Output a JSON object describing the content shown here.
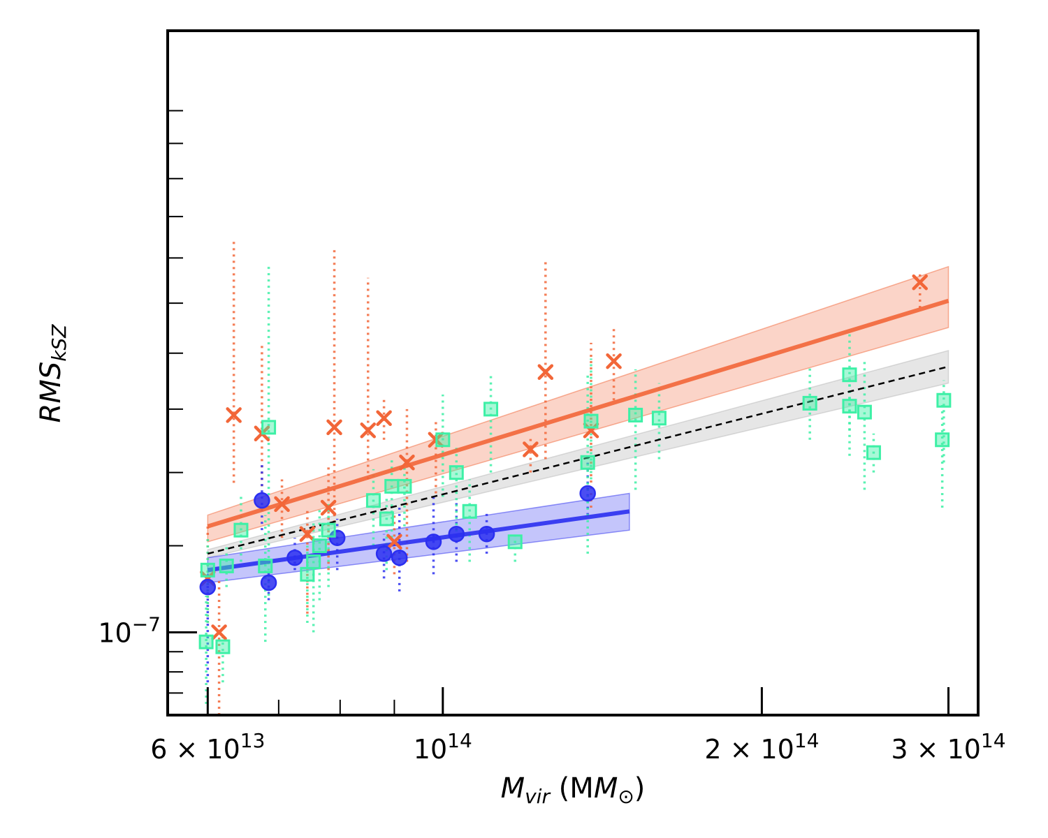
{
  "chart_data": {
    "type": "scatter",
    "xscale": "log",
    "yscale": "log",
    "xlim": [
      55000000000000.0,
      320000000000000.0
    ],
    "ylim": [
      8.4e-08,
      3.55e-07
    ],
    "xlabel": {
      "main": "M",
      "sub": "vir",
      "rest": " (M",
      "sub2": "⊙",
      "close": ")"
    },
    "ylabel": {
      "main": "RMS",
      "sub": "kSZ"
    },
    "x_tick_labels": [
      {
        "value": 60000000000000.0,
        "mantissa": "6 × 10",
        "exp": "13"
      },
      {
        "value": 100000000000000.0,
        "mantissa": "10",
        "exp": "14"
      },
      {
        "value": 200000000000000.0,
        "mantissa": "2 × 10",
        "exp": "14"
      },
      {
        "value": 300000000000000.0,
        "mantissa": "3 × 10",
        "exp": "14"
      }
    ],
    "y_tick_labels": [
      {
        "value": 1e-07,
        "mantissa": "10",
        "exp": "−7"
      }
    ],
    "x_minor_ticks": [
      70000000000000.0,
      80000000000000.0,
      90000000000000.0
    ],
    "y_minor_ticks": [
      8.8e-08,
      9.2e-08,
      9.6e-08,
      1.2e-07,
      1.4e-07,
      1.6e-07,
      1.8e-07,
      2e-07,
      2.2e-07,
      2.4e-07,
      2.6e-07,
      2.8e-07,
      3e-07
    ],
    "colors": {
      "orange": "#f26638",
      "blue": "#2b2ff0",
      "green": "#3df0a6",
      "gray": "#b8b8b8"
    },
    "series": [
      {
        "name": "orange-crosses",
        "marker": "x",
        "color": "#f26638",
        "points": [
          {
            "x": 60000000000000.0,
            "y": 1.12e-07,
            "lo": 1.02e-07,
            "hi": 1.25e-07
          },
          {
            "x": 61500000000000.0,
            "y": 1e-07,
            "lo": 8.4e-08,
            "hi": 1.12e-07
          },
          {
            "x": 63500000000000.0,
            "y": 1.58e-07,
            "lo": 1.37e-07,
            "hi": 2.28e-07
          },
          {
            "x": 67500000000000.0,
            "y": 1.52e-07,
            "lo": 1.36e-07,
            "hi": 1.84e-07
          },
          {
            "x": 70500000000000.0,
            "y": 1.31e-07,
            "lo": 1.22e-07,
            "hi": 1.38e-07
          },
          {
            "x": 74500000000000.0,
            "y": 1.23e-07,
            "lo": 1.04e-07,
            "hi": 1.3e-07
          },
          {
            "x": 78000000000000.0,
            "y": 1.3e-07,
            "lo": 1.14e-07,
            "hi": 1.42e-07
          },
          {
            "x": 79000000000000.0,
            "y": 1.54e-07,
            "lo": 1.26e-07,
            "hi": 2.24e-07
          },
          {
            "x": 85000000000000.0,
            "y": 1.53e-07,
            "lo": 1.38e-07,
            "hi": 2.11e-07
          },
          {
            "x": 88000000000000.0,
            "y": 1.57e-07,
            "lo": 1.5e-07,
            "hi": 1.64e-07
          },
          {
            "x": 90000000000000.0,
            "y": 1.21e-07,
            "lo": 1.13e-07,
            "hi": 1.29e-07
          },
          {
            "x": 92500000000000.0,
            "y": 1.43e-07,
            "lo": 1.16e-07,
            "hi": 1.6e-07
          },
          {
            "x": 98500000000000.0,
            "y": 1.5e-07,
            "lo": 1.34e-07,
            "hi": 1.57e-07
          },
          {
            "x": 121000000000000.0,
            "y": 1.47e-07,
            "lo": 1.4e-07,
            "hi": 1.51e-07
          },
          {
            "x": 125000000000000.0,
            "y": 1.73e-07,
            "lo": 1.44e-07,
            "hi": 2.19e-07
          },
          {
            "x": 138000000000000.0,
            "y": 1.53e-07,
            "lo": 1.3e-07,
            "hi": 1.84e-07
          },
          {
            "x": 145000000000000.0,
            "y": 1.77e-07,
            "lo": 1.63e-07,
            "hi": 1.9e-07
          },
          {
            "x": 282000000000000.0,
            "y": 2.09e-07,
            "lo": 1.98e-07,
            "hi": 2.13e-07
          }
        ]
      },
      {
        "name": "blue-circles",
        "marker": "o",
        "color": "#2b2ff0",
        "points": [
          {
            "x": 60000000000000.0,
            "y": 1.1e-07,
            "lo": 9e-08,
            "hi": 1.13e-07
          },
          {
            "x": 67500000000000.0,
            "y": 1.32e-07,
            "lo": 1.24e-07,
            "hi": 1.43e-07
          },
          {
            "x": 68500000000000.0,
            "y": 1.11e-07,
            "lo": 1.07e-07,
            "hi": 1.14e-07
          },
          {
            "x": 72500000000000.0,
            "y": 1.17e-07,
            "lo": 1.14e-07,
            "hi": 1.22e-07
          },
          {
            "x": 79500000000000.0,
            "y": 1.22e-07,
            "lo": 1.14e-07,
            "hi": 1.27e-07
          },
          {
            "x": 88000000000000.0,
            "y": 1.18e-07,
            "lo": 1.12e-07,
            "hi": 1.23e-07
          },
          {
            "x": 91000000000000.0,
            "y": 1.17e-07,
            "lo": 1.09e-07,
            "hi": 1.3e-07
          },
          {
            "x": 98000000000000.0,
            "y": 1.21e-07,
            "lo": 1.13e-07,
            "hi": 1.34e-07
          },
          {
            "x": 103000000000000.0,
            "y": 1.23e-07,
            "lo": 1.16e-07,
            "hi": 1.32e-07
          },
          {
            "x": 110000000000000.0,
            "y": 1.23e-07,
            "lo": 1.18e-07,
            "hi": 1.29e-07
          },
          {
            "x": 137000000000000.0,
            "y": 1.34e-07,
            "lo": 1.28e-07,
            "hi": 1.43e-07
          }
        ]
      },
      {
        "name": "green-squares",
        "marker": "s",
        "color": "#3df0a6",
        "points": [
          {
            "x": 59800000000000.0,
            "y": 9.8e-08,
            "lo": 8.6e-08,
            "hi": 1.08e-07
          },
          {
            "x": 60000000000000.0,
            "y": 1.14e-07,
            "lo": 1.02e-07,
            "hi": 1.22e-07
          },
          {
            "x": 62000000000000.0,
            "y": 9.7e-08,
            "lo": 9e-08,
            "hi": 1e-07
          },
          {
            "x": 62500000000000.0,
            "y": 1.15e-07,
            "lo": 1.1e-07,
            "hi": 1.2e-07
          },
          {
            "x": 64500000000000.0,
            "y": 1.24e-07,
            "lo": 1.16e-07,
            "hi": 1.33e-07
          },
          {
            "x": 68000000000000.0,
            "y": 1.15e-07,
            "lo": 9.8e-08,
            "hi": 1.28e-07
          },
          {
            "x": 68500000000000.0,
            "y": 1.54e-07,
            "lo": 1.08e-07,
            "hi": 2.16e-07
          },
          {
            "x": 74500000000000.0,
            "y": 1.13e-07,
            "lo": 1.02e-07,
            "hi": 1.2e-07
          },
          {
            "x": 75500000000000.0,
            "y": 1.16e-07,
            "lo": 1e-07,
            "hi": 1.26e-07
          },
          {
            "x": 76500000000000.0,
            "y": 1.2e-07,
            "lo": 1.07e-07,
            "hi": 1.3e-07
          },
          {
            "x": 78000000000000.0,
            "y": 1.24e-07,
            "lo": 1.1e-07,
            "hi": 1.31e-07
          },
          {
            "x": 86000000000000.0,
            "y": 1.32e-07,
            "lo": 1.2e-07,
            "hi": 1.41e-07
          },
          {
            "x": 88500000000000.0,
            "y": 1.27e-07,
            "lo": 1.14e-07,
            "hi": 1.33e-07
          },
          {
            "x": 89500000000000.0,
            "y": 1.36e-07,
            "lo": 1.22e-07,
            "hi": 1.44e-07
          },
          {
            "x": 92000000000000.0,
            "y": 1.36e-07,
            "lo": 1.25e-07,
            "hi": 1.42e-07
          },
          {
            "x": 100000000000000.0,
            "y": 1.5e-07,
            "lo": 1.33e-07,
            "hi": 1.65e-07
          },
          {
            "x": 103000000000000.0,
            "y": 1.4e-07,
            "lo": 1.22e-07,
            "hi": 1.48e-07
          },
          {
            "x": 106000000000000.0,
            "y": 1.29e-07,
            "lo": 1.16e-07,
            "hi": 1.38e-07
          },
          {
            "x": 111000000000000.0,
            "y": 1.6e-07,
            "lo": 1.4e-07,
            "hi": 1.72e-07
          },
          {
            "x": 117000000000000.0,
            "y": 1.21e-07,
            "lo": 1.16e-07,
            "hi": 1.23e-07
          },
          {
            "x": 137000000000000.0,
            "y": 1.43e-07,
            "lo": 1.18e-07,
            "hi": 1.72e-07
          },
          {
            "x": 138000000000000.0,
            "y": 1.56e-07,
            "lo": 1.38e-07,
            "hi": 1.78e-07
          },
          {
            "x": 152000000000000.0,
            "y": 1.58e-07,
            "lo": 1.35e-07,
            "hi": 1.74e-07
          },
          {
            "x": 160000000000000.0,
            "y": 1.57e-07,
            "lo": 1.44e-07,
            "hi": 1.69e-07
          },
          {
            "x": 222000000000000.0,
            "y": 1.62e-07,
            "lo": 1.5e-07,
            "hi": 1.75e-07
          },
          {
            "x": 242000000000000.0,
            "y": 1.72e-07,
            "lo": 1.45e-07,
            "hi": 1.88e-07
          },
          {
            "x": 242000000000000.0,
            "y": 1.61e-07,
            "lo": 1.53e-07,
            "hi": 1.7e-07
          },
          {
            "x": 250000000000000.0,
            "y": 1.59e-07,
            "lo": 1.35e-07,
            "hi": 1.78e-07
          },
          {
            "x": 255000000000000.0,
            "y": 1.46e-07,
            "lo": 1.4e-07,
            "hi": 1.52e-07
          },
          {
            "x": 297000000000000.0,
            "y": 1.63e-07,
            "lo": 1.43e-07,
            "hi": 1.7e-07
          },
          {
            "x": 296000000000000.0,
            "y": 1.5e-07,
            "lo": 1.3e-07,
            "hi": 1.62e-07
          }
        ]
      }
    ],
    "fits": [
      {
        "name": "orange-fit",
        "color": "#f26638",
        "dash": false,
        "x": [
          60000000000000.0,
          300000000000000.0
        ],
        "y": [
          1.25e-07,
          2.01e-07
        ],
        "band_lo": [
          1.21e-07,
          1.9e-07
        ],
        "band_hi": [
          1.28e-07,
          2.16e-07
        ]
      },
      {
        "name": "gray-fit",
        "color": "#000000",
        "band_color": "#b8b8b8",
        "dash": true,
        "x": [
          60000000000000.0,
          300000000000000.0
        ],
        "y": [
          1.18e-07,
          1.75e-07
        ],
        "band_lo": [
          1.17e-07,
          1.69e-07
        ],
        "band_hi": [
          1.19e-07,
          1.81e-07
        ]
      },
      {
        "name": "blue-fit",
        "color": "#2b2ff0",
        "dash": false,
        "x": [
          60000000000000.0,
          150000000000000.0
        ],
        "y": [
          1.14e-07,
          1.29e-07
        ],
        "band_lo": [
          1.11e-07,
          1.24e-07
        ],
        "band_hi": [
          1.17e-07,
          1.34e-07
        ]
      }
    ]
  }
}
